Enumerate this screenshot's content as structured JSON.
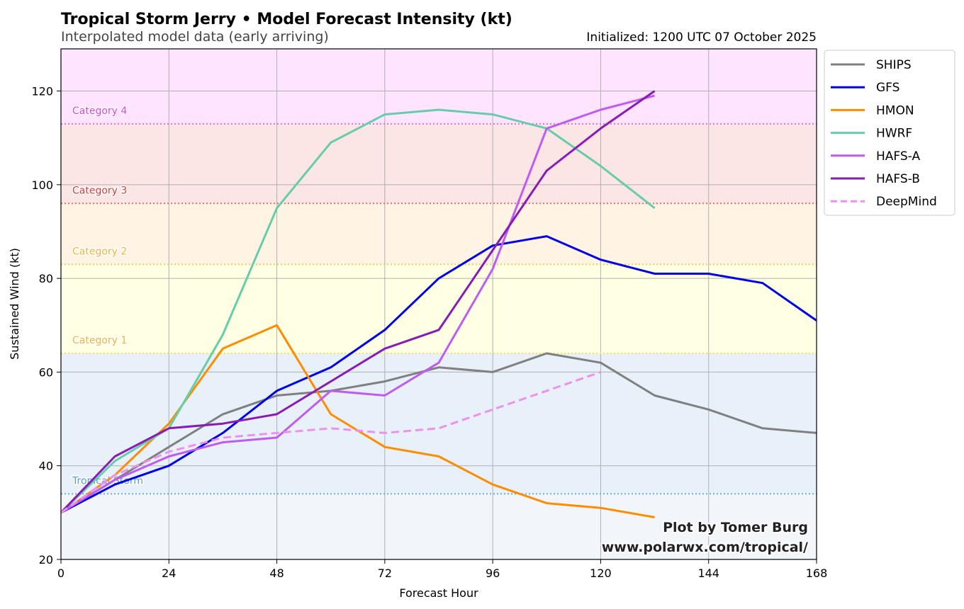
{
  "chart_data": {
    "type": "line",
    "title": "Tropical Storm Jerry • Model Forecast Intensity (kt)",
    "subtitle": "Interpolated model data (early arriving)",
    "init_text": "Initialized: 1200 UTC 07 October 2025",
    "xlabel": "Forecast Hour",
    "ylabel": "Sustained Wind (kt)",
    "xlim": [
      0,
      168
    ],
    "ylim": [
      20,
      129
    ],
    "xticks": [
      0,
      24,
      48,
      72,
      96,
      120,
      144,
      168
    ],
    "yticks": [
      20,
      40,
      60,
      80,
      100,
      120
    ],
    "grid": true,
    "legend_position": "outside-top-right",
    "categories": [
      {
        "name": "Tropical Storm",
        "threshold": 34,
        "label_color": "#5b9bd5",
        "line_color": "#6aaed6"
      },
      {
        "name": "Category 1",
        "threshold": 64,
        "label_color": "#f0b33c",
        "line_color": "#f2e35c"
      },
      {
        "name": "Category 2",
        "threshold": 83,
        "label_color": "#f0b33c",
        "line_color": "#f0cc5a"
      },
      {
        "name": "Category 3",
        "threshold": 96,
        "label_color": "#d63a3a",
        "line_color": "#ef6a6a"
      },
      {
        "name": "Category 4",
        "threshold": 113,
        "label_color": "#e040e0",
        "line_color": "#e070e0"
      }
    ],
    "bands": [
      {
        "from": 20,
        "to": 34,
        "color": "#f2f6fb"
      },
      {
        "from": 34,
        "to": 64,
        "color": "#e8f1f9"
      },
      {
        "from": 64,
        "to": 83,
        "color": "#ffffe3"
      },
      {
        "from": 83,
        "to": 96,
        "color": "#fff3e3"
      },
      {
        "from": 96,
        "to": 113,
        "color": "#fbe5e5"
      },
      {
        "from": 113,
        "to": 129,
        "color": "#ffe4ff"
      }
    ],
    "series": [
      {
        "name": "SHIPS",
        "color": "#808080",
        "dash": "solid",
        "x": [
          0,
          12,
          24,
          36,
          48,
          60,
          72,
          84,
          96,
          108,
          120,
          132,
          144,
          156,
          168
        ],
        "y": [
          30,
          37,
          44,
          51,
          55,
          56,
          58,
          61,
          60,
          64,
          62,
          55,
          52,
          48,
          47
        ]
      },
      {
        "name": "GFS",
        "color": "#0000ee",
        "dash": "solid",
        "x": [
          0,
          12,
          24,
          36,
          48,
          60,
          72,
          84,
          96,
          108,
          120,
          132,
          144,
          156,
          168
        ],
        "y": [
          30,
          36,
          40,
          47,
          56,
          61,
          69,
          80,
          87,
          89,
          84,
          81,
          81,
          79,
          71
        ]
      },
      {
        "name": "HMON",
        "color": "#ff8c00",
        "dash": "solid",
        "x": [
          0,
          12,
          24,
          36,
          48,
          60,
          72,
          84,
          96,
          108,
          120,
          132
        ],
        "y": [
          30,
          38,
          49,
          65,
          70,
          51,
          44,
          42,
          36,
          32,
          31,
          29
        ]
      },
      {
        "name": "HWRF",
        "color": "#66cdaa",
        "dash": "solid",
        "x": [
          0,
          12,
          24,
          36,
          48,
          60,
          72,
          84,
          96,
          108,
          120,
          132
        ],
        "y": [
          30,
          41,
          48,
          68,
          95,
          109,
          115,
          116,
          115,
          112,
          104,
          95
        ]
      },
      {
        "name": "HAFS-A",
        "color": "#bf5af2",
        "dash": "solid",
        "x": [
          0,
          12,
          24,
          36,
          48,
          60,
          72,
          84,
          96,
          108,
          120,
          132
        ],
        "y": [
          30,
          37,
          42,
          45,
          46,
          56,
          55,
          62,
          82,
          112,
          116,
          119
        ]
      },
      {
        "name": "HAFS-B",
        "color": "#8a1ab8",
        "dash": "solid",
        "x": [
          0,
          12,
          24,
          36,
          48,
          60,
          72,
          84,
          96,
          108,
          120,
          132
        ],
        "y": [
          30,
          42,
          48,
          49,
          51,
          58,
          65,
          69,
          86,
          103,
          112,
          120
        ]
      },
      {
        "name": "DeepMind",
        "color": "#ee90ee",
        "dash": "dashed",
        "x": [
          0,
          12,
          24,
          36,
          48,
          60,
          72,
          84,
          96,
          108,
          120
        ],
        "y": [
          30,
          38,
          43,
          46,
          47,
          48,
          47,
          48,
          52,
          56,
          60
        ]
      }
    ],
    "credit": [
      "Plot by Tomer Burg",
      "www.polarwx.com/tropical/"
    ]
  }
}
